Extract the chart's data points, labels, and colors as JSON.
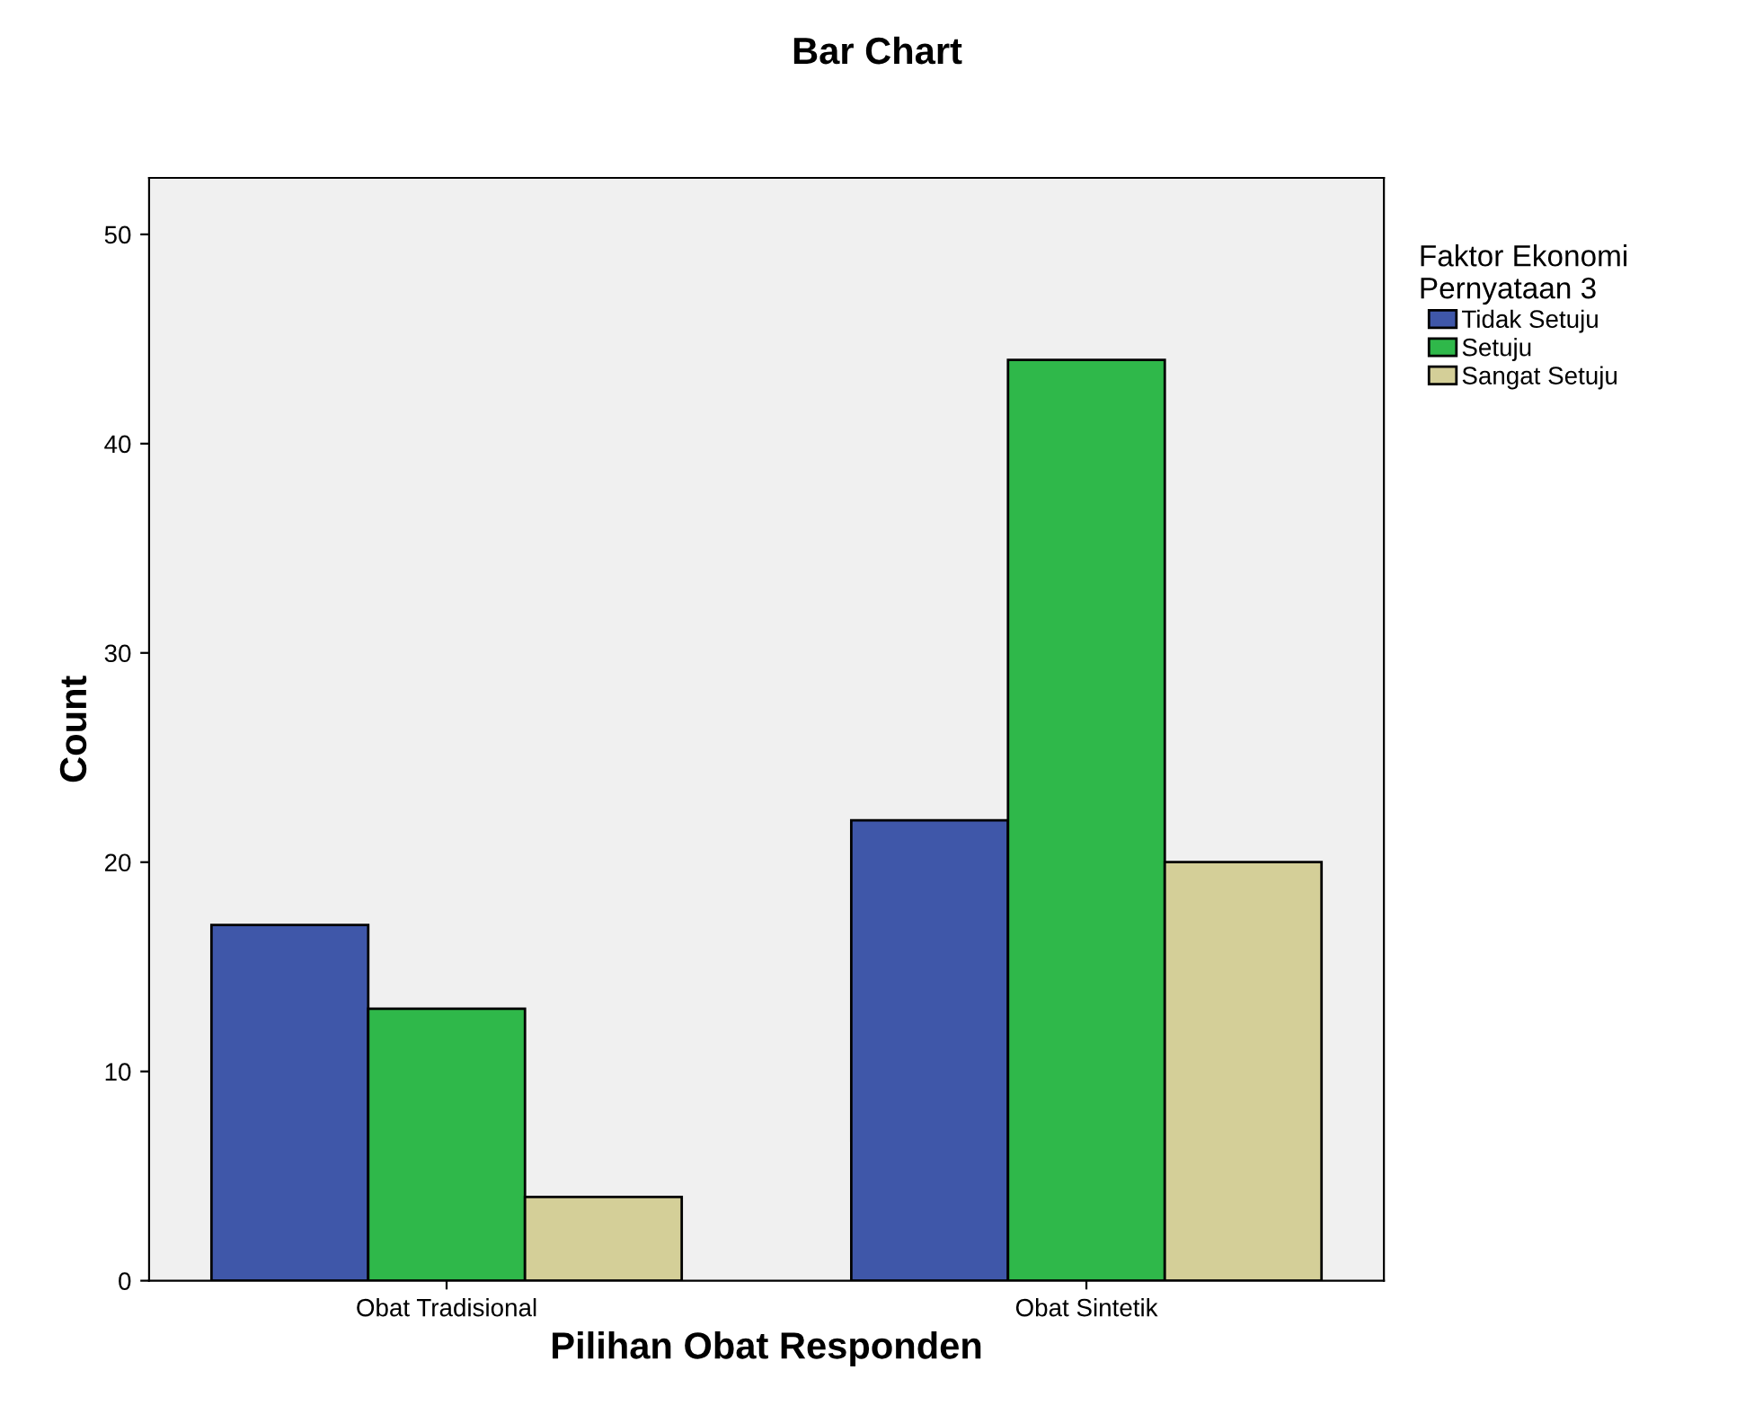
{
  "chart_data": {
    "type": "bar",
    "title": "Bar Chart",
    "xlabel": "Pilihan Obat Responden",
    "ylabel": "Count",
    "legend_title": "Faktor Ekonomi\nPernyataan 3",
    "categories": [
      "Obat Tradisional",
      "Obat Sintetik"
    ],
    "series": [
      {
        "name": "Tidak Setuju",
        "color": "#3f57a9",
        "values": [
          17,
          22
        ]
      },
      {
        "name": "Setuju",
        "color": "#2fb84a",
        "values": [
          13,
          44
        ]
      },
      {
        "name": "Sangat Setuju",
        "color": "#d4cf98",
        "values": [
          4,
          20
        ]
      }
    ],
    "ylim": [
      0,
      52.7
    ],
    "yticks": [
      0,
      10,
      20,
      30,
      40,
      50
    ],
    "grid": false,
    "legend": "right"
  }
}
